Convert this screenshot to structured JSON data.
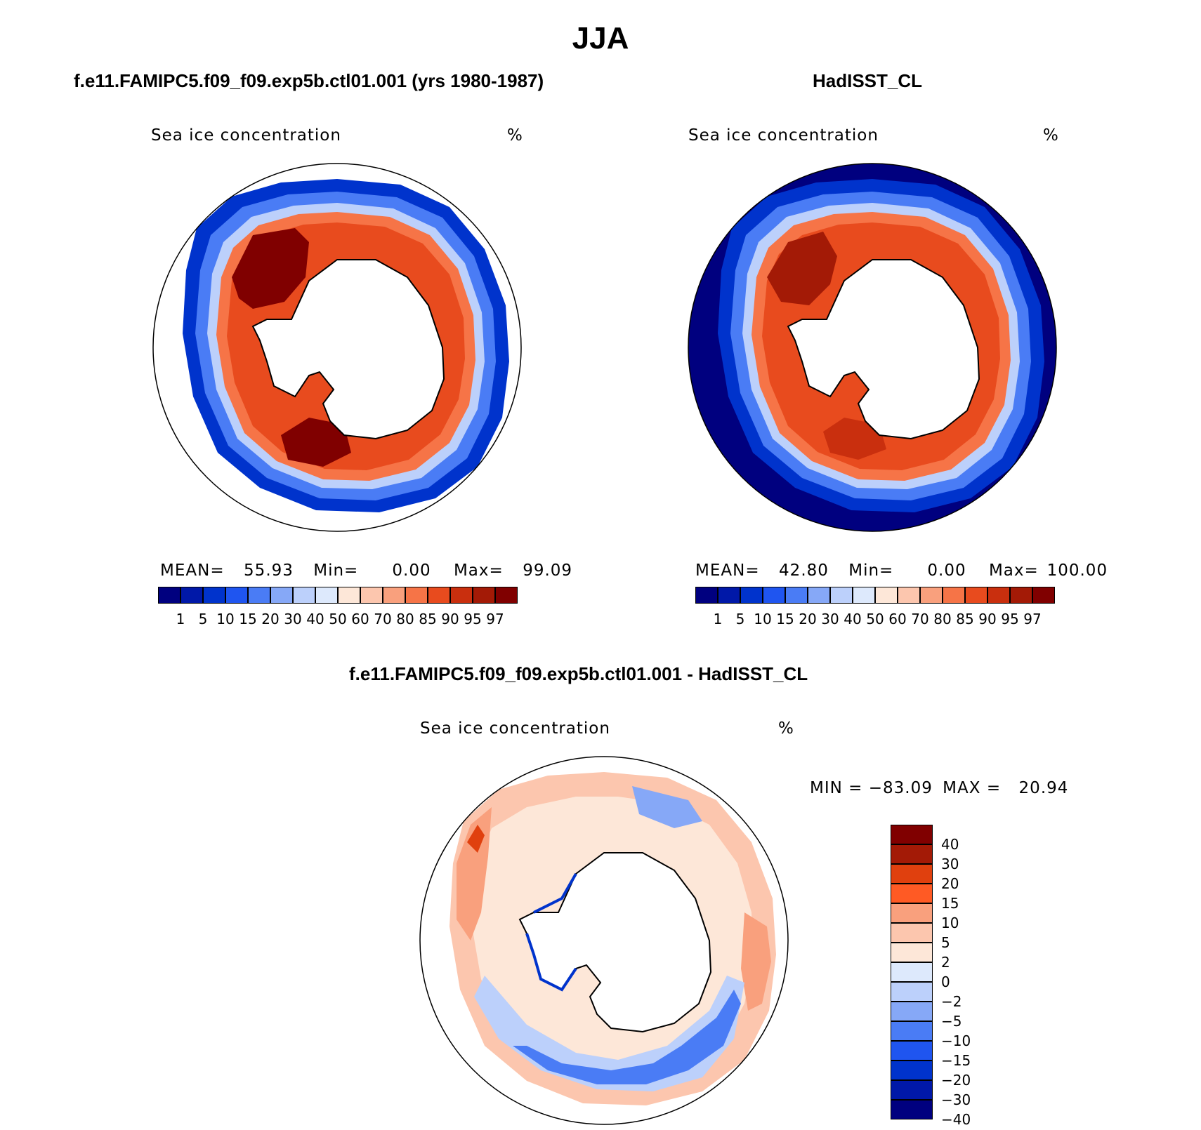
{
  "title": "JJA",
  "panels": {
    "model": {
      "title": "f.e11.FAMIPC5.f09_f09.exp5b.ctl01.001 (yrs 1980-1987)",
      "var_label": "Sea ice concentration",
      "unit": "%",
      "stats": {
        "mean_label": "MEAN=",
        "mean": "55.93",
        "min_label": "Min=",
        "min": "0.00",
        "max_label": "Max=",
        "max": "99.09"
      }
    },
    "obs": {
      "title": "HadISST_CL",
      "var_label": "Sea ice concentration",
      "unit": "%",
      "stats": {
        "mean_label": "MEAN=",
        "mean": "42.80",
        "min_label": "Min=",
        "min": "0.00",
        "max_label": "Max=",
        "max": "100.00"
      }
    },
    "diff": {
      "title": "f.e11.FAMIPC5.f09_f09.exp5b.ctl01.001 - HadISST_CL",
      "var_label": "Sea ice concentration",
      "unit": "%",
      "minmax": {
        "min_label": "MIN =",
        "min": "−83.09",
        "max_label": "MAX =",
        "max": "20.94"
      }
    }
  },
  "abs_colorbar": {
    "ticks": [
      "1",
      "5",
      "10",
      "15",
      "20",
      "30",
      "40",
      "50",
      "60",
      "70",
      "80",
      "85",
      "90",
      "95",
      "97"
    ],
    "colors": [
      "#00007f",
      "#0018a8",
      "#0033cc",
      "#1f55f0",
      "#4a7cf5",
      "#86a8f7",
      "#bcd0fb",
      "#dde9fc",
      "#fde7d8",
      "#fcc6ae",
      "#f9a07d",
      "#f67447",
      "#e84b1e",
      "#c92f0e",
      "#a31a06",
      "#800000"
    ]
  },
  "diff_colorbar": {
    "ticks": [
      "40",
      "30",
      "20",
      "15",
      "10",
      "5",
      "2",
      "0",
      "−2",
      "−5",
      "−10",
      "−15",
      "−20",
      "−30",
      "−40"
    ],
    "colors": [
      "#800000",
      "#a31a06",
      "#e0400e",
      "#ff5a24",
      "#f9a07d",
      "#fcc6ae",
      "#fde7d8",
      "#dde9fc",
      "#bcd0fb",
      "#86a8f7",
      "#4a7cf5",
      "#1f55f0",
      "#0033cc",
      "#0018a8",
      "#00007f"
    ]
  }
}
